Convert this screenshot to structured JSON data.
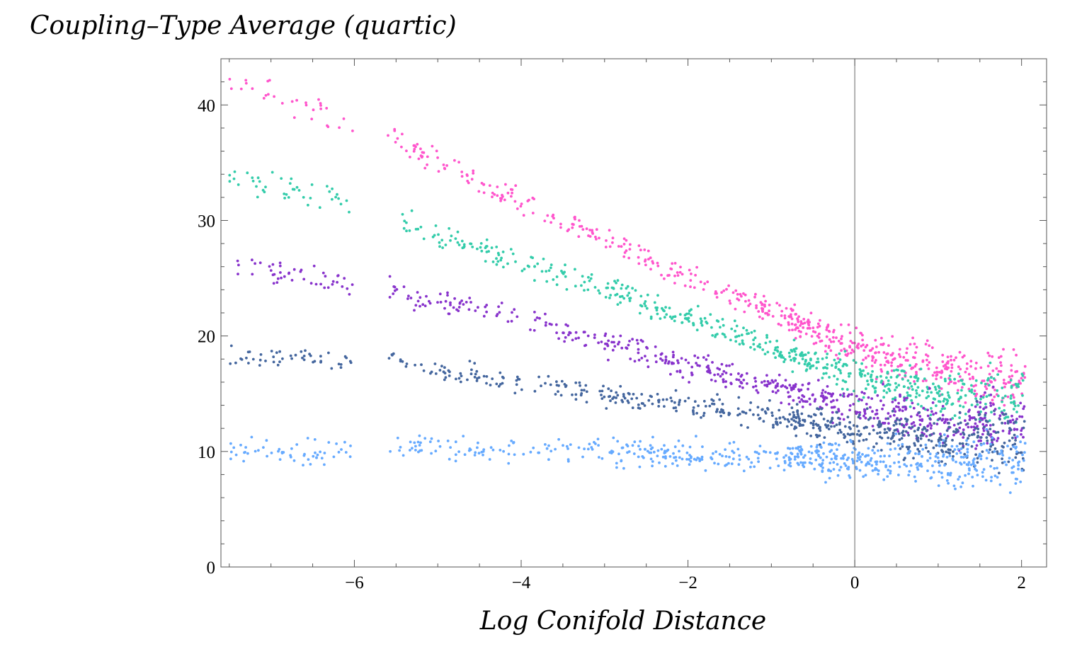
{
  "chart_data": {
    "type": "scatter",
    "title": "Coupling–Type  Average (quartic)",
    "xlabel": "Log  Conifold  Distance",
    "ylabel": "",
    "xlim": [
      -7.6,
      2.3
    ],
    "ylim": [
      0,
      44
    ],
    "x_ticks": [
      -6,
      -4,
      -2,
      0,
      2
    ],
    "x_tick_labels": [
      "−6",
      "−4",
      "−2",
      "0",
      "2"
    ],
    "y_ticks": [
      0,
      10,
      20,
      30,
      40
    ],
    "y_tick_labels": [
      "0",
      "10",
      "20",
      "30",
      "40"
    ],
    "vertical_reference_line_x": 0,
    "grid": false,
    "series": [
      {
        "name": "magenta",
        "color": "#ff55cc",
        "trend": [
          [
            -7.5,
            42.0
          ],
          [
            -6.0,
            38.5
          ],
          [
            -5.0,
            35.0
          ],
          [
            -4.0,
            31.5
          ],
          [
            -3.0,
            28.5
          ],
          [
            -2.0,
            25.0
          ],
          [
            -1.0,
            22.0
          ],
          [
            0.0,
            19.0
          ],
          [
            1.0,
            17.0
          ],
          [
            2.0,
            16.0
          ]
        ],
        "n_points": 620
      },
      {
        "name": "turquoise",
        "color": "#33ccaa",
        "trend": [
          [
            -7.5,
            34.0
          ],
          [
            -6.0,
            31.5
          ],
          [
            -5.0,
            29.0
          ],
          [
            -4.0,
            26.5
          ],
          [
            -3.0,
            24.0
          ],
          [
            -2.0,
            21.5
          ],
          [
            -1.0,
            19.0
          ],
          [
            0.0,
            16.5
          ],
          [
            1.0,
            15.0
          ],
          [
            2.0,
            14.5
          ]
        ],
        "n_points": 620
      },
      {
        "name": "purple",
        "color": "#8833cc",
        "trend": [
          [
            -7.5,
            26.0
          ],
          [
            -6.0,
            24.5
          ],
          [
            -5.0,
            23.0
          ],
          [
            -4.0,
            21.5
          ],
          [
            -3.0,
            19.5
          ],
          [
            -2.0,
            17.5
          ],
          [
            -1.0,
            15.5
          ],
          [
            0.0,
            14.0
          ],
          [
            1.0,
            12.5
          ],
          [
            2.0,
            12.5
          ]
        ],
        "n_points": 620
      },
      {
        "name": "navy",
        "color": "#44669e",
        "trend": [
          [
            -7.5,
            18.5
          ],
          [
            -6.0,
            18.0
          ],
          [
            -5.0,
            17.0
          ],
          [
            -4.0,
            16.0
          ],
          [
            -3.0,
            15.0
          ],
          [
            -2.0,
            14.0
          ],
          [
            -1.0,
            13.0
          ],
          [
            0.0,
            12.0
          ],
          [
            1.0,
            11.0
          ],
          [
            2.0,
            11.0
          ]
        ],
        "n_points": 620
      },
      {
        "name": "light-blue",
        "color": "#66aaff",
        "trend": [
          [
            -7.5,
            10.0
          ],
          [
            -6.0,
            10.0
          ],
          [
            -5.0,
            10.5
          ],
          [
            -4.0,
            10.0
          ],
          [
            -3.0,
            10.0
          ],
          [
            -2.0,
            9.8
          ],
          [
            -1.0,
            9.5
          ],
          [
            0.0,
            9.2
          ],
          [
            1.0,
            8.8
          ],
          [
            2.0,
            9.5
          ]
        ],
        "n_points": 620
      }
    ]
  }
}
